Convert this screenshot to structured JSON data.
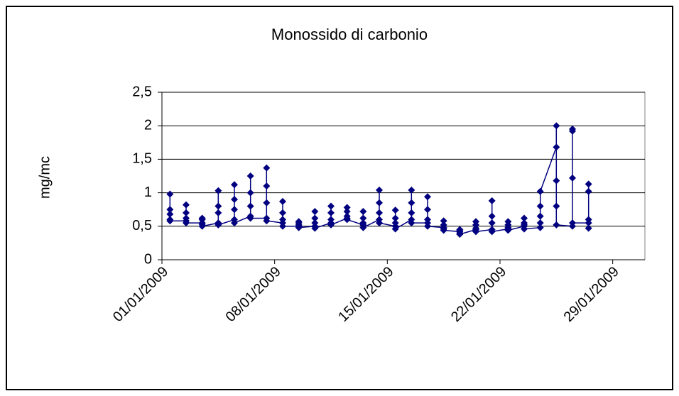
{
  "chart_data": {
    "type": "line",
    "title": "Monossido di carbonio",
    "y_label": "mg/mc",
    "x": [
      "2009-01-01",
      "2009-01-01",
      "2009-01-01",
      "2009-01-01",
      "2009-01-01",
      "2009-01-02",
      "2009-01-02",
      "2009-01-02",
      "2009-01-02",
      "2009-01-02",
      "2009-01-03",
      "2009-01-03",
      "2009-01-03",
      "2009-01-03",
      "2009-01-03",
      "2009-01-04",
      "2009-01-04",
      "2009-01-04",
      "2009-01-04",
      "2009-01-04",
      "2009-01-05",
      "2009-01-05",
      "2009-01-05",
      "2009-01-05",
      "2009-01-05",
      "2009-01-06",
      "2009-01-06",
      "2009-01-06",
      "2009-01-06",
      "2009-01-06",
      "2009-01-07",
      "2009-01-07",
      "2009-01-07",
      "2009-01-07",
      "2009-01-07",
      "2009-01-08",
      "2009-01-08",
      "2009-01-08",
      "2009-01-08",
      "2009-01-08",
      "2009-01-09",
      "2009-01-09",
      "2009-01-09",
      "2009-01-09",
      "2009-01-09",
      "2009-01-10",
      "2009-01-10",
      "2009-01-10",
      "2009-01-10",
      "2009-01-10",
      "2009-01-11",
      "2009-01-11",
      "2009-01-11",
      "2009-01-11",
      "2009-01-11",
      "2009-01-12",
      "2009-01-12",
      "2009-01-12",
      "2009-01-12",
      "2009-01-12",
      "2009-01-13",
      "2009-01-13",
      "2009-01-13",
      "2009-01-13",
      "2009-01-13",
      "2009-01-14",
      "2009-01-14",
      "2009-01-14",
      "2009-01-14",
      "2009-01-14",
      "2009-01-15",
      "2009-01-15",
      "2009-01-15",
      "2009-01-15",
      "2009-01-15",
      "2009-01-16",
      "2009-01-16",
      "2009-01-16",
      "2009-01-16",
      "2009-01-16",
      "2009-01-17",
      "2009-01-17",
      "2009-01-17",
      "2009-01-17",
      "2009-01-17",
      "2009-01-18",
      "2009-01-18",
      "2009-01-18",
      "2009-01-18",
      "2009-01-18",
      "2009-01-19",
      "2009-01-19",
      "2009-01-19",
      "2009-01-19",
      "2009-01-19",
      "2009-01-20",
      "2009-01-20",
      "2009-01-20",
      "2009-01-20",
      "2009-01-20",
      "2009-01-21",
      "2009-01-21",
      "2009-01-21",
      "2009-01-21",
      "2009-01-21",
      "2009-01-22",
      "2009-01-22",
      "2009-01-22",
      "2009-01-22",
      "2009-01-22",
      "2009-01-23",
      "2009-01-23",
      "2009-01-23",
      "2009-01-23",
      "2009-01-23",
      "2009-01-24",
      "2009-01-24",
      "2009-01-24",
      "2009-01-24",
      "2009-01-24",
      "2009-01-25",
      "2009-01-25",
      "2009-01-25",
      "2009-01-25",
      "2009-01-25",
      "2009-01-26",
      "2009-01-26",
      "2009-01-26",
      "2009-01-26",
      "2009-01-26",
      "2009-01-27",
      "2009-01-27",
      "2009-01-27",
      "2009-01-27",
      "2009-01-27"
    ],
    "series": [
      {
        "name": "CO",
        "color": "#000080",
        "values": [
          0.6,
          0.75,
          0.98,
          0.68,
          0.58,
          0.58,
          0.7,
          0.82,
          0.62,
          0.55,
          0.55,
          0.6,
          0.62,
          0.53,
          0.5,
          0.55,
          0.8,
          1.03,
          0.7,
          0.52,
          0.6,
          0.9,
          1.12,
          0.75,
          0.55,
          0.65,
          1.0,
          1.25,
          0.8,
          0.62,
          0.62,
          1.1,
          1.37,
          0.85,
          0.58,
          0.55,
          0.7,
          0.87,
          0.6,
          0.5,
          0.5,
          0.55,
          0.57,
          0.52,
          0.48,
          0.5,
          0.62,
          0.72,
          0.55,
          0.47,
          0.55,
          0.7,
          0.8,
          0.6,
          0.52,
          0.62,
          0.72,
          0.78,
          0.65,
          0.6,
          0.52,
          0.62,
          0.72,
          0.55,
          0.48,
          0.6,
          0.85,
          1.04,
          0.7,
          0.55,
          0.5,
          0.62,
          0.74,
          0.55,
          0.46,
          0.6,
          0.85,
          1.04,
          0.7,
          0.55,
          0.55,
          0.75,
          0.94,
          0.6,
          0.5,
          0.48,
          0.52,
          0.58,
          0.46,
          0.44,
          0.42,
          0.44,
          0.45,
          0.4,
          0.38,
          0.45,
          0.52,
          0.57,
          0.47,
          0.42,
          0.45,
          0.65,
          0.88,
          0.55,
          0.42,
          0.46,
          0.52,
          0.57,
          0.48,
          0.44,
          0.5,
          0.55,
          0.62,
          0.52,
          0.46,
          0.48,
          0.55,
          0.65,
          0.8,
          1.02,
          1.68,
          2.0,
          1.18,
          0.8,
          0.52,
          0.5,
          1.95,
          1.92,
          1.22,
          0.55,
          0.55,
          1.13,
          1.02,
          0.6,
          0.47
        ]
      }
    ],
    "xlim": [
      "2009-01-01",
      "2009-01-31"
    ],
    "xticks": [
      {
        "value": "2009-01-01",
        "label": "01/01/2009"
      },
      {
        "value": "2009-01-08",
        "label": "08/01/2009"
      },
      {
        "value": "2009-01-15",
        "label": "15/01/2009"
      },
      {
        "value": "2009-01-22",
        "label": "22/01/2009"
      },
      {
        "value": "2009-01-29",
        "label": "29/01/2009"
      }
    ],
    "ylim": [
      0,
      2.5
    ],
    "yticks": [
      0,
      {
        "value": 0.5,
        "label": "0,5"
      },
      1,
      {
        "value": 1.5,
        "label": "1,5"
      },
      2,
      {
        "value": 2.5,
        "label": "2,5"
      }
    ],
    "grid": true
  }
}
